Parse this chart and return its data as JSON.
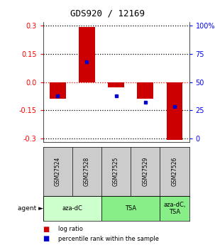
{
  "title": "GDS920 / 12169",
  "samples": [
    "GSM27524",
    "GSM27528",
    "GSM27525",
    "GSM27529",
    "GSM27526"
  ],
  "log_ratios": [
    -0.09,
    0.295,
    -0.03,
    -0.09,
    -0.31
  ],
  "percentile_ranks": [
    0.38,
    0.68,
    0.38,
    0.32,
    0.28
  ],
  "agent_groups": [
    {
      "label": "aza-dC",
      "start": 0,
      "end": 2,
      "color": "#ccffcc"
    },
    {
      "label": "TSA",
      "start": 2,
      "end": 4,
      "color": "#88ee88"
    },
    {
      "label": "aza-dC,\nTSA",
      "start": 4,
      "end": 5,
      "color": "#88ee88"
    }
  ],
  "ylim": [
    -0.32,
    0.32
  ],
  "yticks_left": [
    -0.3,
    -0.15,
    0.0,
    0.15,
    0.3
  ],
  "yticks_right_vals": [
    -0.3,
    -0.15,
    0.0,
    0.15,
    0.3
  ],
  "yticks_right_labels": [
    "0",
    "25",
    "50",
    "75",
    "100%"
  ],
  "bar_color": "#cc0000",
  "dot_color": "#0000cc",
  "background_color": "#ffffff",
  "legend_red": "log ratio",
  "legend_blue": "percentile rank within the sample",
  "sample_bg": "#cccccc",
  "agent_label": "agent ►"
}
